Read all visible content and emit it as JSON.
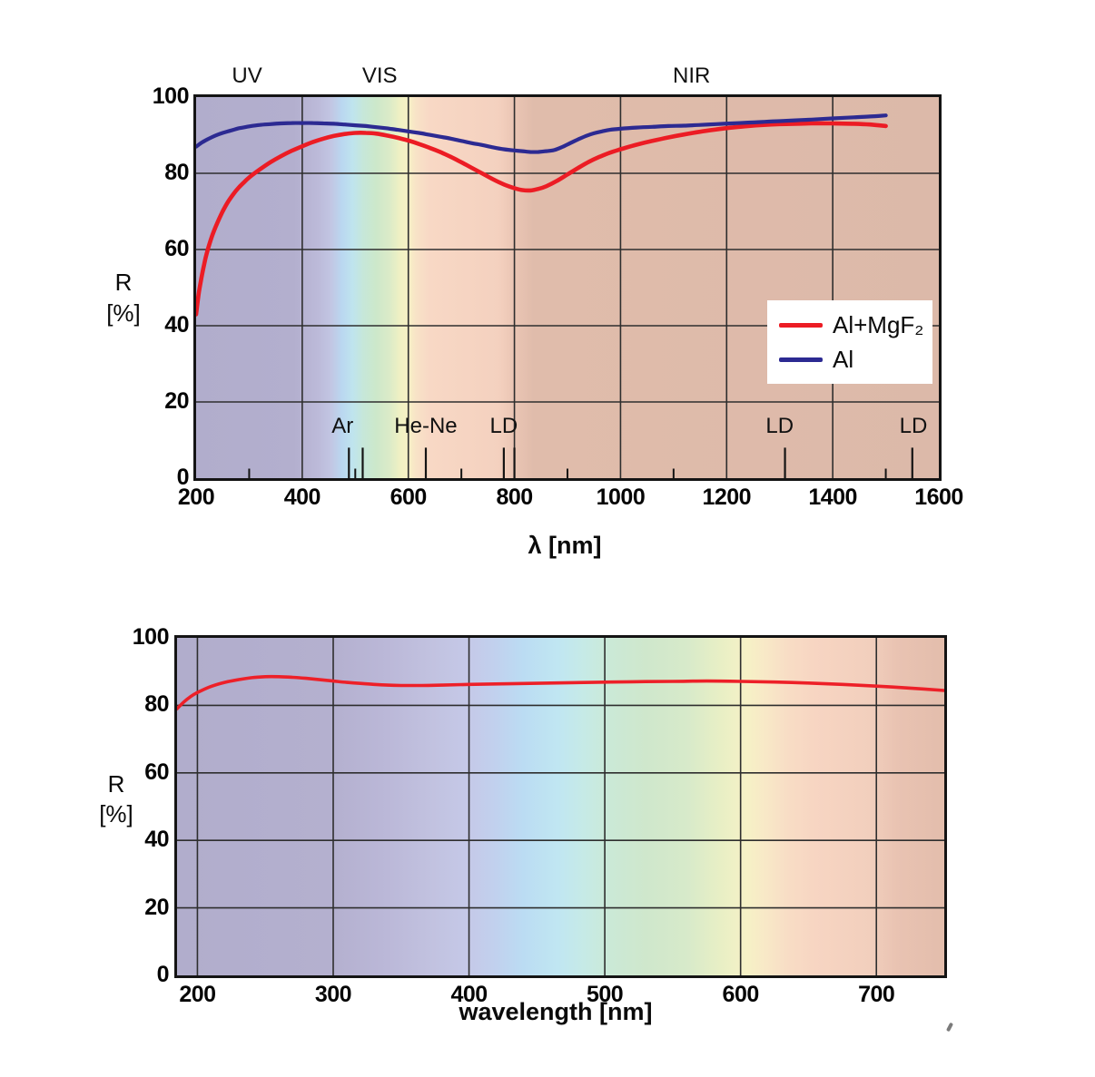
{
  "figure": {
    "background": "#ffffff",
    "grid_color": "#2e2e2e",
    "axis_color": "#141414"
  },
  "chart_data": [
    {
      "type": "line",
      "xlabel": "λ [nm]",
      "ylabel_lines": [
        "R",
        "[%]"
      ],
      "x_range": [
        200,
        1600
      ],
      "y_range": [
        0,
        100
      ],
      "x_ticks": [
        200,
        400,
        600,
        800,
        1000,
        1200,
        1400,
        1600
      ],
      "y_ticks": [
        0,
        20,
        40,
        60,
        80,
        100
      ],
      "x_gridlines": [
        400,
        600,
        800,
        1000,
        1200,
        1400
      ],
      "y_gridlines": [
        20,
        40,
        60,
        80
      ],
      "minor_ticks_nm": [
        300,
        500,
        700,
        900,
        1100,
        1500
      ],
      "minor_tick_top_R": 2.5,
      "marker_line_top_R": 8,
      "region_labels": [
        {
          "label": "UV",
          "nm": 296
        },
        {
          "label": "VIS",
          "nm": 546
        },
        {
          "label": "NIR",
          "nm": 1134
        }
      ],
      "laser_markers": [
        {
          "label": "Ar",
          "label_nm": 476,
          "lines_nm": [
            488,
            514
          ]
        },
        {
          "label": "He-Ne",
          "label_nm": 633,
          "lines_nm": [
            633
          ]
        },
        {
          "label": "LD",
          "label_nm": 780,
          "lines_nm": [
            780,
            800
          ]
        },
        {
          "label": "LD",
          "label_nm": 1300,
          "lines_nm": [
            1310
          ]
        },
        {
          "label": "LD",
          "label_nm": 1552,
          "lines_nm": [
            1550
          ]
        }
      ],
      "legend": {
        "position": "right-middle",
        "background": "#ffffff"
      },
      "series": [
        {
          "name": "Al+MgF₂",
          "color": "#ec1c24",
          "points": [
            [
              200,
              43
            ],
            [
              205,
              48.5
            ],
            [
              210,
              52.5
            ],
            [
              215,
              56
            ],
            [
              220,
              59
            ],
            [
              230,
              63.5
            ],
            [
              240,
              67
            ],
            [
              250,
              70
            ],
            [
              260,
              72.5
            ],
            [
              270,
              74.5
            ],
            [
              280,
              76.2
            ],
            [
              290,
              77.6
            ],
            [
              300,
              78.9
            ],
            [
              320,
              81
            ],
            [
              340,
              82.9
            ],
            [
              360,
              84.5
            ],
            [
              380,
              85.9
            ],
            [
              400,
              87.1
            ],
            [
              420,
              88.2
            ],
            [
              440,
              89.1
            ],
            [
              460,
              89.8
            ],
            [
              480,
              90.3
            ],
            [
              500,
              90.6
            ],
            [
              520,
              90.6
            ],
            [
              540,
              90.4
            ],
            [
              560,
              89.9
            ],
            [
              580,
              89.3
            ],
            [
              600,
              88.6
            ],
            [
              620,
              87.7
            ],
            [
              640,
              86.7
            ],
            [
              660,
              85.6
            ],
            [
              680,
              84.3
            ],
            [
              700,
              82.9
            ],
            [
              720,
              81.4
            ],
            [
              740,
              79.9
            ],
            [
              760,
              78.4
            ],
            [
              780,
              77.1
            ],
            [
              800,
              76.1
            ],
            [
              815,
              75.6
            ],
            [
              830,
              75.5
            ],
            [
              845,
              75.9
            ],
            [
              860,
              76.6
            ],
            [
              880,
              78
            ],
            [
              900,
              79.7
            ],
            [
              920,
              81.4
            ],
            [
              940,
              83
            ],
            [
              960,
              84.3
            ],
            [
              980,
              85.4
            ],
            [
              1000,
              86.3
            ],
            [
              1030,
              87.5
            ],
            [
              1060,
              88.5
            ],
            [
              1090,
              89.4
            ],
            [
              1120,
              90.2
            ],
            [
              1150,
              90.9
            ],
            [
              1180,
              91.5
            ],
            [
              1210,
              92
            ],
            [
              1240,
              92.4
            ],
            [
              1270,
              92.7
            ],
            [
              1300,
              92.9
            ],
            [
              1330,
              93
            ],
            [
              1360,
              93.1
            ],
            [
              1400,
              93.1
            ],
            [
              1440,
              93
            ],
            [
              1470,
              92.8
            ],
            [
              1500,
              92.4
            ]
          ]
        },
        {
          "name": "Al",
          "color": "#2c2a92",
          "points": [
            [
              200,
              87
            ],
            [
              210,
              88
            ],
            [
              220,
              88.8
            ],
            [
              230,
              89.5
            ],
            [
              240,
              90.1
            ],
            [
              250,
              90.6
            ],
            [
              260,
              91
            ],
            [
              270,
              91.4
            ],
            [
              280,
              91.8
            ],
            [
              300,
              92.3
            ],
            [
              320,
              92.7
            ],
            [
              340,
              92.9
            ],
            [
              360,
              93.1
            ],
            [
              380,
              93.2
            ],
            [
              400,
              93.2
            ],
            [
              420,
              93.2
            ],
            [
              440,
              93.1
            ],
            [
              460,
              93
            ],
            [
              480,
              92.8
            ],
            [
              500,
              92.6
            ],
            [
              520,
              92.4
            ],
            [
              540,
              92.1
            ],
            [
              560,
              91.8
            ],
            [
              580,
              91.4
            ],
            [
              600,
              91
            ],
            [
              620,
              90.6
            ],
            [
              640,
              90.1
            ],
            [
              660,
              89.6
            ],
            [
              680,
              89.1
            ],
            [
              700,
              88.5
            ],
            [
              720,
              87.9
            ],
            [
              740,
              87.4
            ],
            [
              760,
              86.8
            ],
            [
              780,
              86.3
            ],
            [
              800,
              86
            ],
            [
              815,
              85.8
            ],
            [
              830,
              85.6
            ],
            [
              845,
              85.6
            ],
            [
              860,
              85.8
            ],
            [
              875,
              86.1
            ],
            [
              890,
              86.9
            ],
            [
              905,
              87.9
            ],
            [
              920,
              88.9
            ],
            [
              935,
              89.8
            ],
            [
              950,
              90.5
            ],
            [
              965,
              91
            ],
            [
              980,
              91.4
            ],
            [
              1000,
              91.7
            ],
            [
              1030,
              92
            ],
            [
              1060,
              92.2
            ],
            [
              1090,
              92.4
            ],
            [
              1120,
              92.5
            ],
            [
              1150,
              92.7
            ],
            [
              1180,
              92.9
            ],
            [
              1210,
              93.1
            ],
            [
              1240,
              93.3
            ],
            [
              1270,
              93.5
            ],
            [
              1300,
              93.7
            ],
            [
              1330,
              93.9
            ],
            [
              1360,
              94.1
            ],
            [
              1400,
              94.4
            ],
            [
              1440,
              94.7
            ],
            [
              1470,
              94.9
            ],
            [
              1500,
              95.2
            ]
          ]
        }
      ]
    },
    {
      "type": "line",
      "xlabel": "wavelength [nm]",
      "ylabel_lines": [
        "R",
        "[%]"
      ],
      "x_range": [
        185,
        750
      ],
      "y_range": [
        0,
        100
      ],
      "x_ticks": [
        200,
        300,
        400,
        500,
        600,
        700
      ],
      "y_ticks": [
        0,
        20,
        40,
        60,
        80,
        100
      ],
      "x_gridlines": [
        200,
        300,
        400,
        500,
        600,
        700
      ],
      "y_gridlines": [
        20,
        40,
        60,
        80
      ],
      "series": [
        {
          "color": "#ed2028",
          "points": [
            [
              185,
              79
            ],
            [
              190,
              81
            ],
            [
              195,
              82.6
            ],
            [
              200,
              83.8
            ],
            [
              210,
              85.6
            ],
            [
              220,
              86.8
            ],
            [
              230,
              87.6
            ],
            [
              240,
              88.2
            ],
            [
              250,
              88.5
            ],
            [
              260,
              88.5
            ],
            [
              270,
              88.3
            ],
            [
              280,
              88
            ],
            [
              290,
              87.6
            ],
            [
              300,
              87.2
            ],
            [
              310,
              86.8
            ],
            [
              320,
              86.5
            ],
            [
              330,
              86.2
            ],
            [
              340,
              86
            ],
            [
              350,
              85.9
            ],
            [
              365,
              85.9
            ],
            [
              380,
              86
            ],
            [
              400,
              86.2
            ],
            [
              430,
              86.4
            ],
            [
              460,
              86.6
            ],
            [
              490,
              86.8
            ],
            [
              520,
              87
            ],
            [
              550,
              87.1
            ],
            [
              575,
              87.2
            ],
            [
              600,
              87.1
            ],
            [
              625,
              86.9
            ],
            [
              650,
              86.6
            ],
            [
              675,
              86.2
            ],
            [
              700,
              85.7
            ],
            [
              725,
              85.1
            ],
            [
              750,
              84.4
            ]
          ]
        }
      ]
    }
  ]
}
